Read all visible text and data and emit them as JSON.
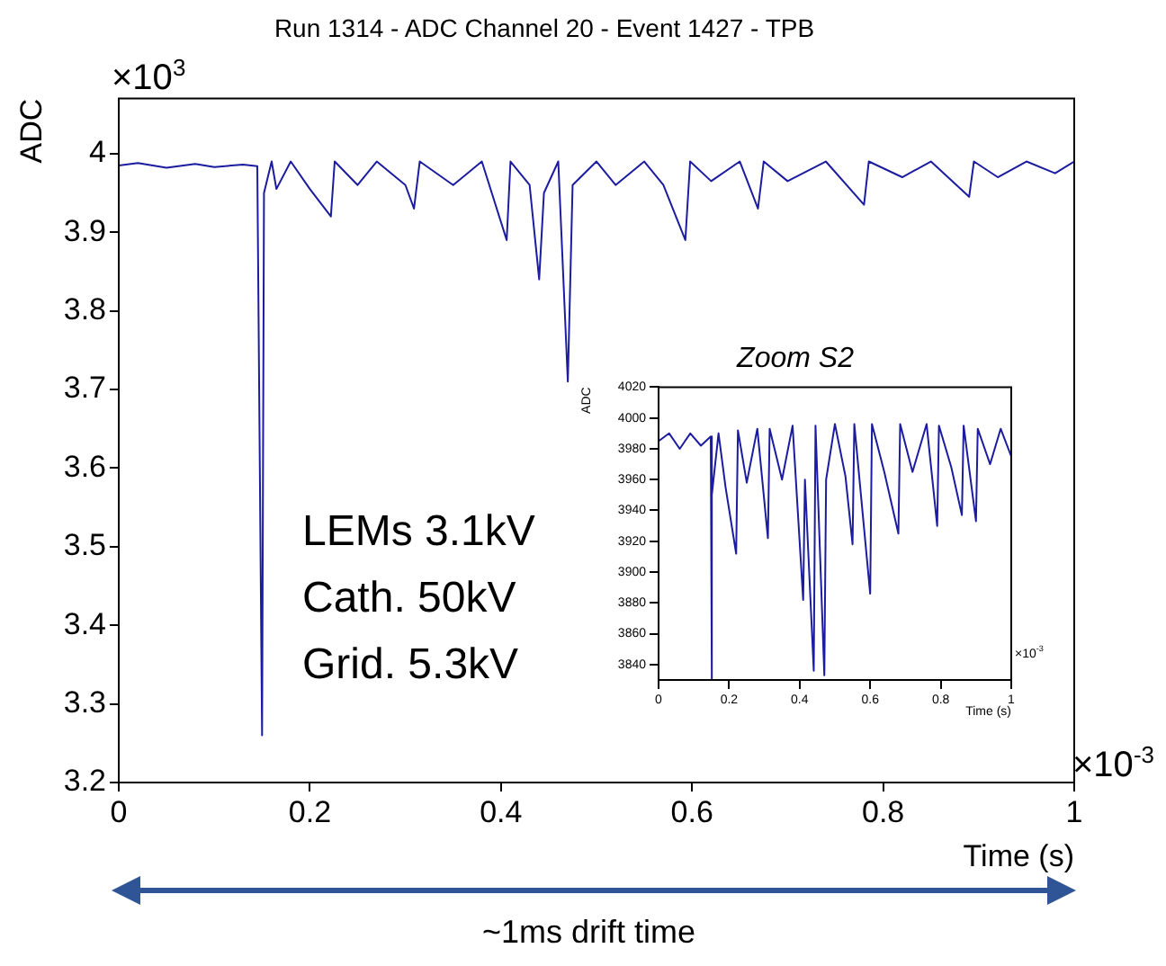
{
  "chart_data": [
    {
      "type": "line",
      "title": "Run 1314 - ADC Channel 20 - Event 1427 - TPB",
      "xlabel": "Time (s)",
      "ylabel": "ADC",
      "annotations": [
        "×10$^{3}$",
        "×10$^{-3}$",
        "LEMs 3.1kV",
        "Cath. 50kV",
        "Grid. 5.3kV",
        "~1ms drift time"
      ],
      "x": [
        0,
        0.02,
        0.05,
        0.08,
        0.1,
        0.13,
        0.145,
        0.15,
        0.152,
        0.16,
        0.165,
        0.18,
        0.2,
        0.222,
        0.226,
        0.25,
        0.27,
        0.3,
        0.309,
        0.315,
        0.35,
        0.38,
        0.406,
        0.41,
        0.43,
        0.44,
        0.445,
        0.46,
        0.47,
        0.475,
        0.5,
        0.52,
        0.55,
        0.57,
        0.593,
        0.598,
        0.62,
        0.65,
        0.669,
        0.675,
        0.7,
        0.74,
        0.78,
        0.785,
        0.82,
        0.85,
        0.89,
        0.895,
        0.92,
        0.95,
        0.98,
        1
      ],
      "series": [
        {
          "color": "#1c1ca0",
          "values": [
            3.985,
            3.988,
            3.982,
            3.987,
            3.983,
            3.986,
            3.984,
            3.26,
            3.95,
            3.99,
            3.955,
            3.99,
            3.955,
            3.92,
            3.99,
            3.96,
            3.99,
            3.96,
            3.93,
            3.99,
            3.96,
            3.99,
            3.89,
            3.99,
            3.96,
            3.84,
            3.95,
            3.99,
            3.71,
            3.96,
            3.99,
            3.96,
            3.99,
            3.96,
            3.89,
            3.99,
            3.965,
            3.99,
            3.93,
            3.99,
            3.965,
            3.99,
            3.935,
            3.99,
            3.97,
            3.99,
            3.945,
            3.99,
            3.97,
            3.99,
            3.975,
            3.99
          ]
        }
      ],
      "xlim": [
        0,
        1
      ],
      "xticks": [
        0,
        0.2,
        0.4,
        0.6,
        0.8,
        1
      ],
      "ylim": [
        3.2,
        4.07
      ],
      "yticks": [
        3.2,
        3.3,
        3.4,
        3.5,
        3.6,
        3.7,
        3.8,
        3.9,
        4
      ],
      "marker": "none",
      "legend": false
    },
    {
      "type": "line",
      "title": "Zoom S2",
      "xlabel": "Time (s)",
      "ylabel": "ADC",
      "annotations": [
        "×10$^{-3}$"
      ],
      "x": [
        0,
        0.03,
        0.06,
        0.09,
        0.12,
        0.148,
        0.15,
        0.152,
        0.17,
        0.19,
        0.22,
        0.225,
        0.25,
        0.28,
        0.31,
        0.315,
        0.35,
        0.38,
        0.41,
        0.415,
        0.44,
        0.445,
        0.47,
        0.475,
        0.5,
        0.53,
        0.55,
        0.555,
        0.6,
        0.605,
        0.64,
        0.68,
        0.685,
        0.72,
        0.76,
        0.79,
        0.795,
        0.83,
        0.86,
        0.865,
        0.9,
        0.905,
        0.94,
        0.97,
        1
      ],
      "series": [
        {
          "color": "#1c1ca0",
          "values": [
            3985,
            3990,
            3980,
            3990,
            3982,
            3988,
            3830,
            3950,
            3990,
            3955,
            3912,
            3992,
            3958,
            3993,
            3922,
            3993,
            3960,
            3995,
            3882,
            3960,
            3836,
            3995,
            3833,
            3960,
            3996,
            3962,
            3918,
            3996,
            3886,
            3996,
            3965,
            3925,
            3996,
            3965,
            3996,
            3930,
            3995,
            3968,
            3937,
            3995,
            3933,
            3993,
            3970,
            3993,
            3975
          ]
        }
      ],
      "xlim": [
        0,
        1
      ],
      "xticks": [
        0,
        0.2,
        0.4,
        0.6,
        0.8,
        1
      ],
      "ylim": [
        3830,
        4020
      ],
      "yticks": [
        3840,
        3860,
        3880,
        3900,
        3920,
        3940,
        3960,
        3980,
        4000,
        4020
      ],
      "marker": "none",
      "legend": false
    }
  ]
}
